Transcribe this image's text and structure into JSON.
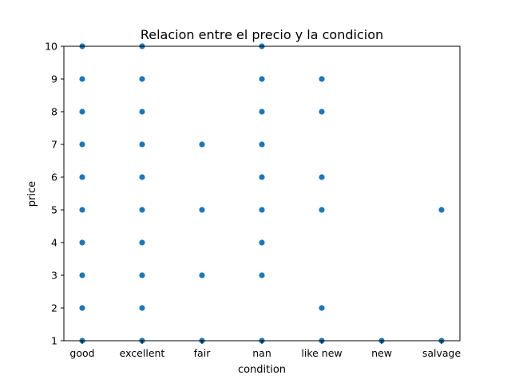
{
  "chart_data": {
    "type": "scatter",
    "title": "Relacion entre el precio y la condicion",
    "xlabel": "condition",
    "ylabel": "price",
    "categories": [
      "good",
      "excellent",
      "fair",
      "nan",
      "like new",
      "new",
      "salvage"
    ],
    "yticks": [
      1,
      2,
      3,
      4,
      5,
      6,
      7,
      8,
      9,
      10
    ],
    "ylim": [
      1,
      10
    ],
    "grid": false,
    "marker_color": "#1f77b4",
    "points": [
      {
        "x": "good",
        "y": 1
      },
      {
        "x": "good",
        "y": 2
      },
      {
        "x": "good",
        "y": 3
      },
      {
        "x": "good",
        "y": 4
      },
      {
        "x": "good",
        "y": 5
      },
      {
        "x": "good",
        "y": 6
      },
      {
        "x": "good",
        "y": 7
      },
      {
        "x": "good",
        "y": 8
      },
      {
        "x": "good",
        "y": 9
      },
      {
        "x": "good",
        "y": 10
      },
      {
        "x": "excellent",
        "y": 1
      },
      {
        "x": "excellent",
        "y": 2
      },
      {
        "x": "excellent",
        "y": 3
      },
      {
        "x": "excellent",
        "y": 4
      },
      {
        "x": "excellent",
        "y": 5
      },
      {
        "x": "excellent",
        "y": 6
      },
      {
        "x": "excellent",
        "y": 7
      },
      {
        "x": "excellent",
        "y": 8
      },
      {
        "x": "excellent",
        "y": 9
      },
      {
        "x": "excellent",
        "y": 10
      },
      {
        "x": "fair",
        "y": 1
      },
      {
        "x": "fair",
        "y": 3
      },
      {
        "x": "fair",
        "y": 5
      },
      {
        "x": "fair",
        "y": 7
      },
      {
        "x": "nan",
        "y": 1
      },
      {
        "x": "nan",
        "y": 3
      },
      {
        "x": "nan",
        "y": 4
      },
      {
        "x": "nan",
        "y": 5
      },
      {
        "x": "nan",
        "y": 6
      },
      {
        "x": "nan",
        "y": 7
      },
      {
        "x": "nan",
        "y": 8
      },
      {
        "x": "nan",
        "y": 9
      },
      {
        "x": "nan",
        "y": 10
      },
      {
        "x": "like new",
        "y": 1
      },
      {
        "x": "like new",
        "y": 2
      },
      {
        "x": "like new",
        "y": 5
      },
      {
        "x": "like new",
        "y": 6
      },
      {
        "x": "like new",
        "y": 8
      },
      {
        "x": "like new",
        "y": 9
      },
      {
        "x": "new",
        "y": 1
      },
      {
        "x": "salvage",
        "y": 1
      },
      {
        "x": "salvage",
        "y": 5
      }
    ]
  }
}
